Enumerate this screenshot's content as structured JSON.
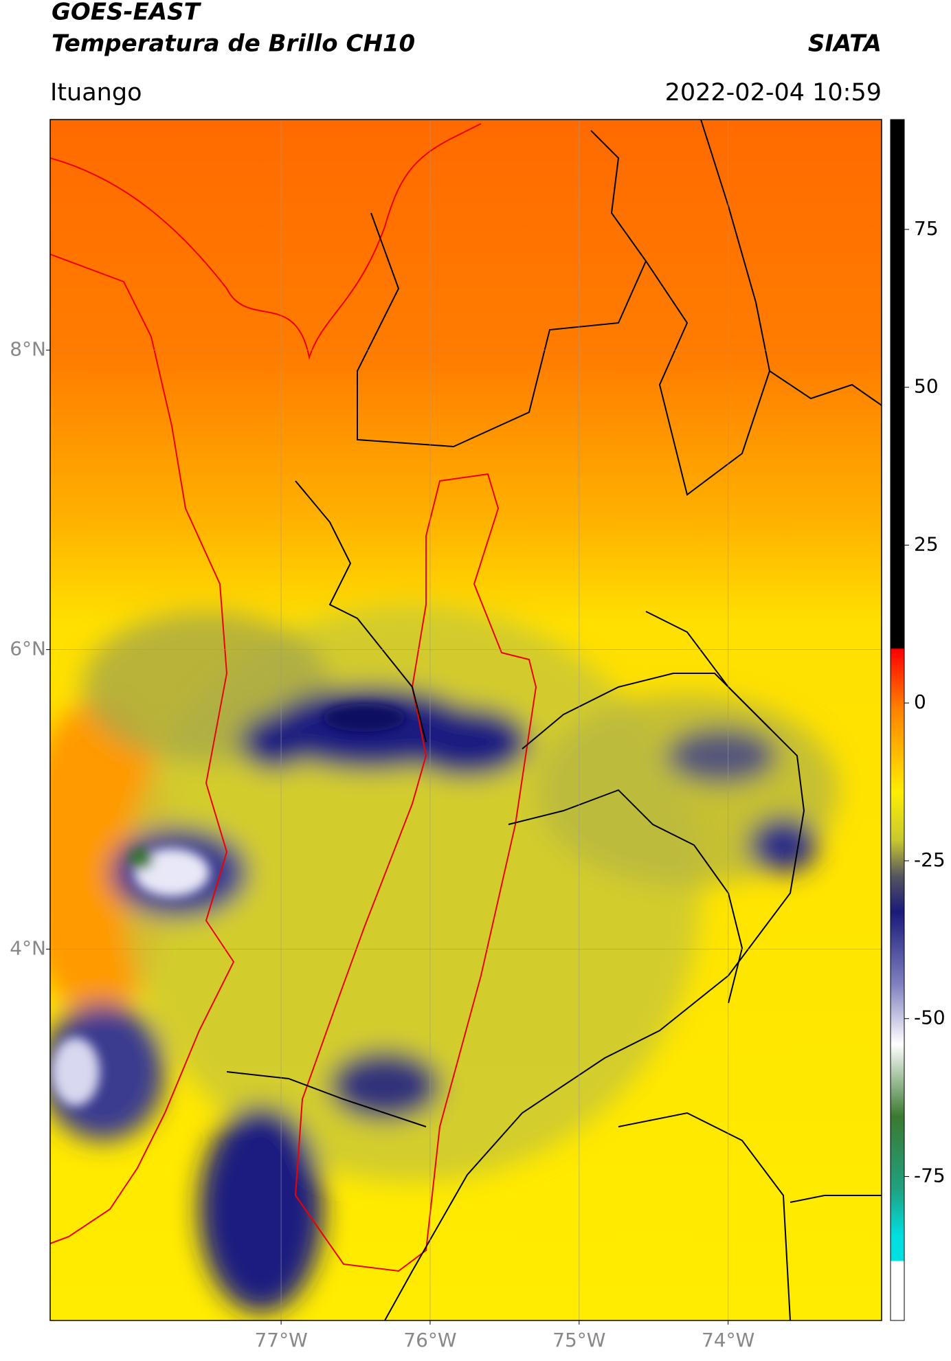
{
  "header": {
    "title": "GOES-EAST",
    "subtitle": "Temperatura de Brillo CH10",
    "source": "SIATA",
    "location": "Ituango",
    "timestamp": "2022-02-04 10:59"
  },
  "map": {
    "lon_range": [
      -78.55,
      -72.97
    ],
    "lat_range": [
      1.52,
      9.54
    ],
    "lon_ticks": [
      {
        "value": -77,
        "label": "77°W"
      },
      {
        "value": -76,
        "label": "76°W"
      },
      {
        "value": -75,
        "label": "75°W"
      },
      {
        "value": -74,
        "label": "74°W"
      }
    ],
    "lat_ticks": [
      {
        "value": 8,
        "label": "8°N"
      },
      {
        "value": 6,
        "label": "6°N"
      },
      {
        "value": 4,
        "label": "4°N"
      }
    ],
    "grid": true
  },
  "colorbar": {
    "range": [
      -97.8,
      92.4
    ],
    "ticks": [
      75,
      50,
      25,
      0,
      -25,
      -50,
      -75
    ]
  }
}
